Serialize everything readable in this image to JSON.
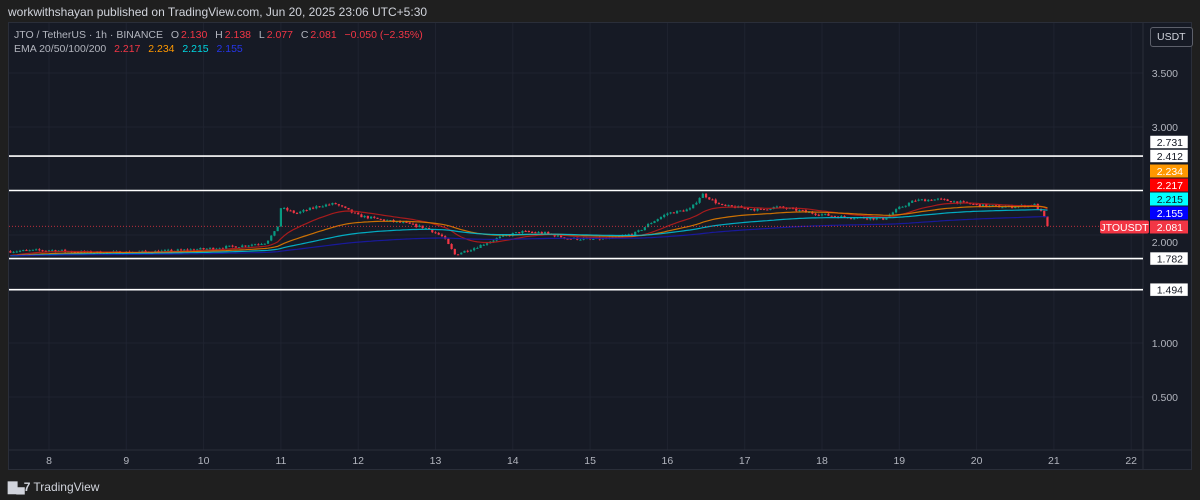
{
  "header": {
    "published": "workwithshayan published on TradingView.com, Jun 20, 2025 23:06 UTC+5:30"
  },
  "legend": {
    "symbol": "JTO / TetherUS · 1h · BINANCE",
    "open_label": "O",
    "open": "2.130",
    "high_label": "H",
    "high": "2.138",
    "low_label": "L",
    "low": "2.077",
    "close_label": "C",
    "close": "2.081",
    "change": "−0.050 (−2.35%)",
    "ema_label": "EMA 20/50/100/200",
    "ema20": "2.217",
    "ema50": "2.234",
    "ema100": "2.215",
    "ema200": "2.155"
  },
  "currency_button": "USDT",
  "footer": {
    "brand": "TradingView"
  },
  "colors": {
    "up": "#089981",
    "down": "#f23645",
    "ema20": "#b71c1c",
    "ema50": "#e07b00",
    "ema100": "#00bcd4",
    "ema200": "#1a1aa8",
    "background": "#161a25"
  },
  "chart_data": {
    "type": "candlestick",
    "title": "",
    "symbol_tag": "JTOUSDT",
    "last_price": "2.081",
    "xlabel": "",
    "ylabel": "",
    "x_ticks": [
      "8",
      "9",
      "10",
      "11",
      "12",
      "13",
      "14",
      "15",
      "16",
      "17",
      "18",
      "19",
      "20",
      "21",
      "22"
    ],
    "y_ticks": [
      "3.500",
      "3.000",
      "2.000",
      "1.000",
      "0.500"
    ],
    "ylim": [
      0.2,
      3.85
    ],
    "grid": true,
    "horizontal_levels": [
      "2.731",
      "2.412",
      "1.782",
      "1.494"
    ],
    "price_labels": [
      {
        "value": "2.234",
        "color": "#ff9800",
        "text_color": "#ffffff"
      },
      {
        "value": "2.217",
        "color": "#ff0000",
        "text_color": "#ffffff"
      },
      {
        "value": "2.215",
        "color": "#00ffff",
        "text_color": "#131722"
      },
      {
        "value": "2.155",
        "color": "#0000ff",
        "text_color": "#ffffff"
      },
      {
        "value": "2.081",
        "color": "#f23645",
        "text_color": "#ffffff"
      }
    ],
    "approx_close_path": [
      [
        7.5,
        1.85
      ],
      [
        8,
        1.86
      ],
      [
        8.5,
        1.84
      ],
      [
        9,
        1.84
      ],
      [
        9.5,
        1.85
      ],
      [
        10,
        1.87
      ],
      [
        10.5,
        1.9
      ],
      [
        10.8,
        1.93
      ],
      [
        10.95,
        2.05
      ],
      [
        11.0,
        2.25
      ],
      [
        11.2,
        2.2
      ],
      [
        11.5,
        2.27
      ],
      [
        11.7,
        2.29
      ],
      [
        12,
        2.18
      ],
      [
        12.3,
        2.14
      ],
      [
        12.6,
        2.11
      ],
      [
        12.9,
        2.06
      ],
      [
        13.1,
        1.98
      ],
      [
        13.25,
        1.82
      ],
      [
        13.5,
        1.88
      ],
      [
        13.8,
        1.97
      ],
      [
        14.1,
        2.03
      ],
      [
        14.4,
        2.02
      ],
      [
        14.7,
        1.97
      ],
      [
        15.0,
        1.96
      ],
      [
        15.3,
        1.97
      ],
      [
        15.6,
        2.02
      ],
      [
        15.8,
        2.12
      ],
      [
        16.0,
        2.2
      ],
      [
        16.3,
        2.24
      ],
      [
        16.45,
        2.38
      ],
      [
        16.7,
        2.27
      ],
      [
        17,
        2.25
      ],
      [
        17.2,
        2.23
      ],
      [
        17.4,
        2.26
      ],
      [
        17.6,
        2.24
      ],
      [
        17.9,
        2.2
      ],
      [
        18.2,
        2.17
      ],
      [
        18.5,
        2.16
      ],
      [
        18.8,
        2.15
      ],
      [
        19.0,
        2.25
      ],
      [
        19.2,
        2.32
      ],
      [
        19.5,
        2.33
      ],
      [
        19.8,
        2.3
      ],
      [
        20.1,
        2.27
      ],
      [
        20.4,
        2.26
      ],
      [
        20.6,
        2.27
      ],
      [
        20.75,
        2.28
      ],
      [
        20.85,
        2.2
      ],
      [
        20.93,
        2.081
      ]
    ]
  }
}
